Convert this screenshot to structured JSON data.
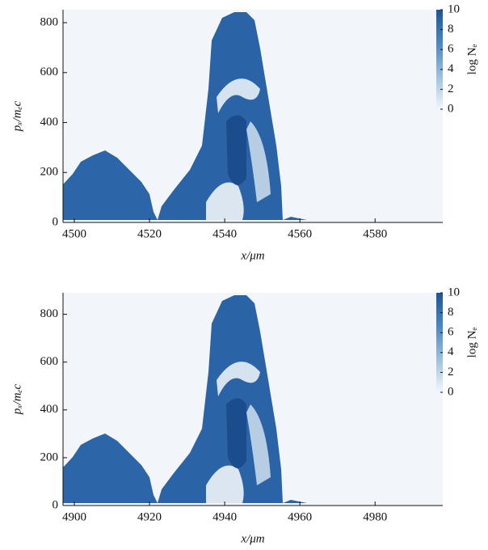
{
  "chart_data": [
    {
      "type": "heatmap",
      "xlabel": "x/μm",
      "ylabel": "pₓ/mₑc",
      "xlim": [
        4497,
        4598
      ],
      "xticks": [
        4500,
        4520,
        4540,
        4560,
        4580
      ],
      "ylim": [
        0,
        852
      ],
      "yticks": [
        0,
        200,
        400,
        600,
        800
      ],
      "colorbar": {
        "label": "log Nₑ",
        "lim": [
          0,
          10
        ],
        "ticks": [
          0,
          2,
          4,
          6,
          8,
          10
        ],
        "colors": [
          "#f3f7fb",
          "#9cc0de",
          "#4b86c0",
          "#1d5597"
        ]
      }
    },
    {
      "type": "heatmap",
      "xlabel": "x/μm",
      "ylabel": "pₓ/mₑc",
      "xlim": [
        4897,
        4998
      ],
      "xticks": [
        4900,
        4920,
        4940,
        4960,
        4980
      ],
      "ylim": [
        0,
        890
      ],
      "yticks": [
        0,
        200,
        400,
        600,
        800
      ],
      "colorbar": {
        "label": "log Nₑ",
        "lim": [
          0,
          10
        ],
        "ticks": [
          0,
          2,
          4,
          6,
          8,
          10
        ],
        "colors": [
          "#f3f7fb",
          "#9cc0de",
          "#4b86c0",
          "#1d5597"
        ]
      }
    }
  ]
}
